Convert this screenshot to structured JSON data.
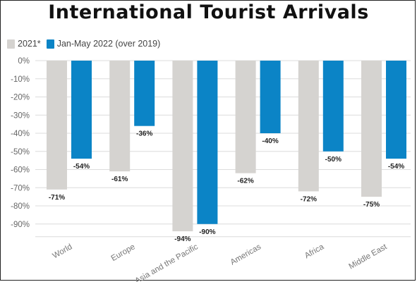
{
  "chart_data": {
    "type": "bar",
    "title": "International Tourist Arrivals",
    "categories": [
      "World",
      "Europe",
      "Asia and the Pacific",
      "Americas",
      "Africa",
      "Middle East"
    ],
    "series": [
      {
        "name": "2021*",
        "color": "#d5d3d0",
        "values": [
          -71,
          -61,
          -94,
          -62,
          -72,
          -75
        ],
        "labels": [
          "-71%",
          "-61%",
          "-94%",
          "-62%",
          "-72%",
          "-75%"
        ]
      },
      {
        "name": "Jan-May 2022 (over 2019)",
        "color": "#0b84c6",
        "values": [
          -54,
          -36,
          -90,
          -40,
          -50,
          -54
        ],
        "labels": [
          "-54%",
          "-36%",
          "-90%",
          "-40%",
          "-50%",
          "-54%"
        ]
      }
    ],
    "y_ticks": [
      0,
      -10,
      -20,
      -30,
      -40,
      -50,
      -60,
      -70,
      -80,
      -90
    ],
    "y_tick_labels": [
      "0%",
      "-10%",
      "-20%",
      "-30%",
      "-40%",
      "-50%",
      "-60%",
      "-70%",
      "-80%",
      "-90%"
    ],
    "ylim": [
      -97,
      0
    ],
    "grid": true,
    "legend_position": "top-left"
  }
}
